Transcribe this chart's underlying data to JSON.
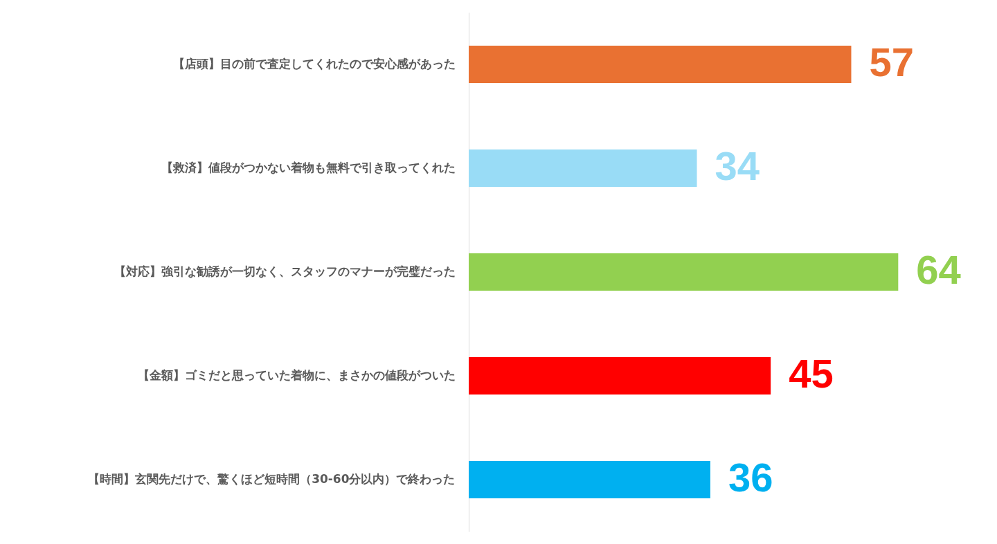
{
  "chart_data": {
    "type": "bar",
    "orientation": "horizontal",
    "categories": [
      "【店頭】目の前で査定してくれたので安心感があった",
      "【救済】値段がつかない着物も無料で引き取ってくれた",
      "【対応】強引な勧誘が一切なく、スタッフのマナーが完璧だった",
      "【金額】ゴミだと思っていた着物に、まさかの値段がついた",
      "【時間】玄関先だけで、驚くほど短時間（30-60分以内）で終わった"
    ],
    "values": [
      57,
      34,
      64,
      45,
      36
    ],
    "colors": [
      "#e97132",
      "#99dcf6",
      "#92d050",
      "#ff0000",
      "#00b0f0"
    ],
    "data_labels": true,
    "tick_labels": "y"
  }
}
